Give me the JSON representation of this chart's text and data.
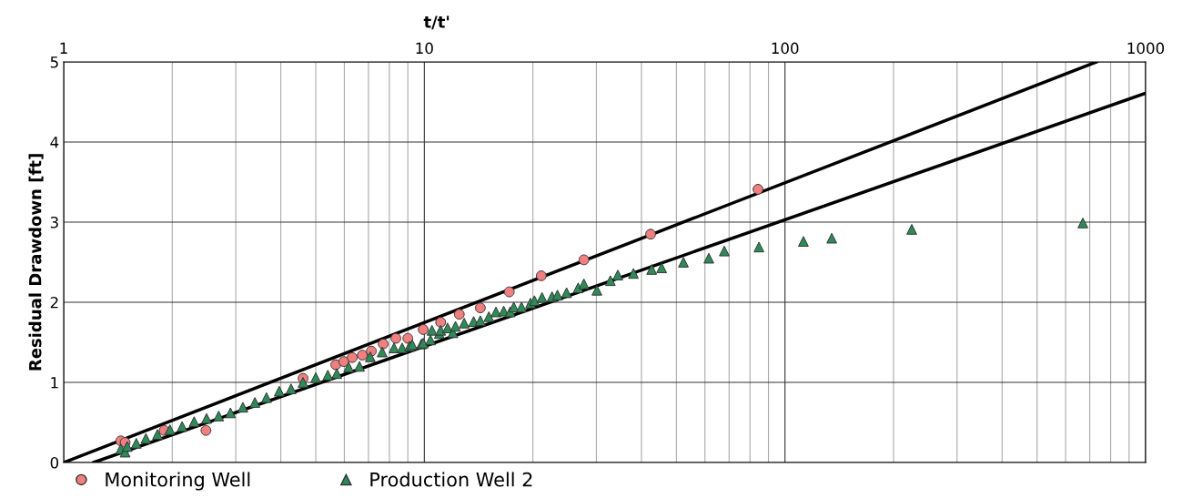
{
  "chart_data": {
    "type": "scatter",
    "xlabel": "t/t'",
    "ylabel": "Residual Drawdown [ft]",
    "log": "x",
    "xlim": [
      1,
      1000
    ],
    "xticks": [
      1,
      10,
      100,
      1000
    ],
    "ylim": [
      0,
      5
    ],
    "yticks": [
      0,
      1,
      2,
      3,
      4,
      5
    ],
    "grid": true,
    "legend": "bottom left",
    "series": [
      {
        "name": "Monitoring Well",
        "marker": "circle",
        "color": "#f08080",
        "x": [
          1.44,
          1.48,
          1.9,
          2.48,
          4.61,
          5.68,
          5.98,
          6.31,
          6.73,
          7.13,
          7.69,
          8.34,
          9.0,
          9.93,
          11.1,
          12.5,
          14.3,
          17.2,
          21.1,
          27.7,
          42.4,
          84.2
        ],
        "values": [
          0.27,
          0.25,
          0.4,
          0.4,
          1.05,
          1.22,
          1.26,
          1.31,
          1.34,
          1.39,
          1.48,
          1.55,
          1.55,
          1.66,
          1.75,
          1.85,
          1.93,
          2.13,
          2.33,
          2.53,
          2.85,
          3.41
        ]
      },
      {
        "name": "Production Well 2",
        "marker": "triangle",
        "color": "#2e8b57",
        "x": [
          1.44,
          1.48,
          1.5,
          1.59,
          1.69,
          1.82,
          1.97,
          2.13,
          2.3,
          2.49,
          2.69,
          2.9,
          3.14,
          3.39,
          3.65,
          3.96,
          4.27,
          4.61,
          5.0,
          5.4,
          5.72,
          6.17,
          6.61,
          7.08,
          7.64,
          8.24,
          8.68,
          9.1,
          9.26,
          9.82,
          9.93,
          10.4,
          10.5,
          11.0,
          11.1,
          11.6,
          12.0,
          12.2,
          12.9,
          13.7,
          14.3,
          15.1,
          15.8,
          16.6,
          17.3,
          17.7,
          18.6,
          19.7,
          20.2,
          21.2,
          22.6,
          23.4,
          24.8,
          26.7,
          27.7,
          30.1,
          32.8,
          34.4,
          38.0,
          42.7,
          45.5,
          52.3,
          61.5,
          67.9,
          84.7,
          112.5,
          134.8,
          224.7,
          670
        ],
        "values": [
          0.17,
          0.13,
          0.2,
          0.24,
          0.3,
          0.35,
          0.41,
          0.45,
          0.51,
          0.55,
          0.58,
          0.62,
          0.69,
          0.75,
          0.81,
          0.89,
          0.92,
          1.0,
          1.06,
          1.09,
          1.11,
          1.19,
          1.2,
          1.32,
          1.38,
          1.43,
          1.43,
          1.45,
          1.47,
          1.48,
          1.49,
          1.53,
          1.65,
          1.61,
          1.65,
          1.68,
          1.62,
          1.7,
          1.74,
          1.76,
          1.77,
          1.82,
          1.88,
          1.89,
          1.88,
          1.94,
          1.94,
          1.99,
          2.02,
          2.06,
          2.07,
          2.09,
          2.12,
          2.18,
          2.23,
          2.15,
          2.27,
          2.34,
          2.36,
          2.41,
          2.43,
          2.5,
          2.55,
          2.64,
          2.69,
          2.76,
          2.8,
          2.91,
          2.99
        ]
      },
      {
        "type": "line",
        "color": "#000000",
        "x": [
          1,
          731
        ],
        "values": [
          0,
          5
        ]
      },
      {
        "type": "line",
        "color": "#000000",
        "x": [
          1.21,
          1000
        ],
        "values": [
          0,
          4.61
        ]
      }
    ]
  }
}
